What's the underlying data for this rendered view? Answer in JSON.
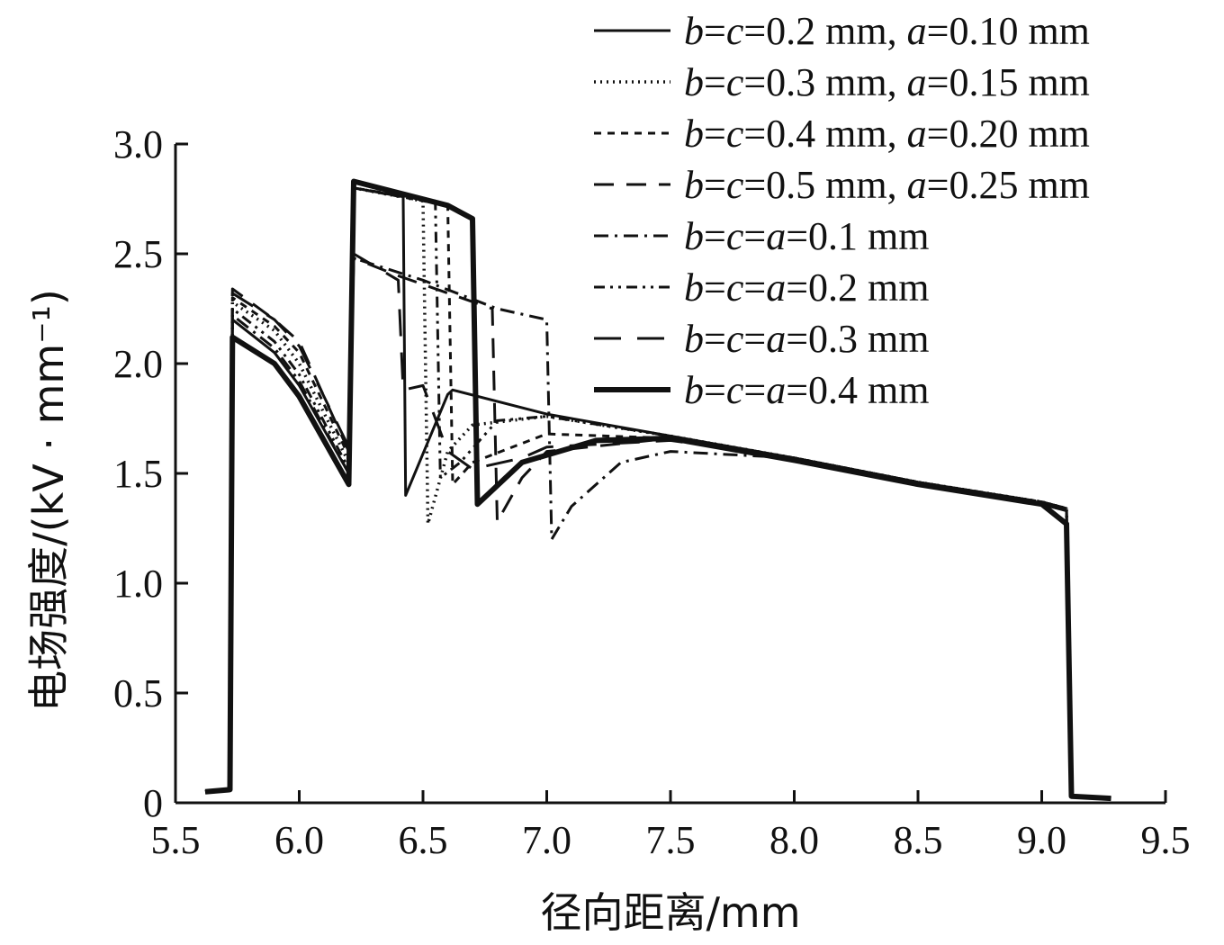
{
  "chart_data": {
    "type": "line",
    "title": "",
    "xlabel": "径向距离/mm",
    "ylabel": "电场强度/(kV · mm⁻¹)",
    "xlim": [
      5.5,
      9.5
    ],
    "ylim": [
      0,
      3.0
    ],
    "x_ticks": [
      5.5,
      6.0,
      6.5,
      7.0,
      7.5,
      8.0,
      8.5,
      9.0,
      9.5
    ],
    "x_tick_labels": [
      "5.5",
      "6.0",
      "6.5",
      "7.0",
      "7.5",
      "8.0",
      "8.5",
      "9.0",
      "9.5"
    ],
    "y_ticks": [
      0,
      0.5,
      1.0,
      1.5,
      2.0,
      2.5,
      3.0
    ],
    "y_tick_labels": [
      "0",
      "0.5",
      "1.0",
      "1.5",
      "2.0",
      "2.5",
      "3.0"
    ],
    "grid": false,
    "legend_position": "top-right",
    "series": [
      {
        "name": "b=c=0.2 mm, a=0.10 mm",
        "style": "solid",
        "color": "#111111",
        "points": [
          [
            5.62,
            0.05
          ],
          [
            5.72,
            0.06
          ],
          [
            5.73,
            2.2
          ],
          [
            5.9,
            2.05
          ],
          [
            6.0,
            1.9
          ],
          [
            6.2,
            1.5
          ],
          [
            6.22,
            2.8
          ],
          [
            6.42,
            2.76
          ],
          [
            6.43,
            1.4
          ],
          [
            6.6,
            1.86
          ],
          [
            6.62,
            1.88
          ],
          [
            7.0,
            1.77
          ],
          [
            7.5,
            1.67
          ],
          [
            8.0,
            1.57
          ],
          [
            8.5,
            1.46
          ],
          [
            9.0,
            1.36
          ],
          [
            9.1,
            1.33
          ],
          [
            9.12,
            0.03
          ],
          [
            9.28,
            0.02
          ]
        ]
      },
      {
        "name": "b=c=0.3 mm, a=0.15 mm",
        "style": "dotted",
        "color": "#111111",
        "points": [
          [
            5.62,
            0.05
          ],
          [
            5.72,
            0.06
          ],
          [
            5.73,
            2.28
          ],
          [
            5.9,
            2.15
          ],
          [
            6.0,
            2.0
          ],
          [
            6.2,
            1.55
          ],
          [
            6.22,
            2.8
          ],
          [
            6.5,
            2.74
          ],
          [
            6.52,
            1.27
          ],
          [
            6.6,
            1.6
          ],
          [
            6.7,
            1.72
          ],
          [
            7.0,
            1.76
          ],
          [
            7.5,
            1.67
          ],
          [
            8.0,
            1.57
          ],
          [
            8.5,
            1.46
          ],
          [
            9.0,
            1.37
          ],
          [
            9.1,
            1.34
          ],
          [
            9.12,
            0.03
          ],
          [
            9.28,
            0.02
          ]
        ]
      },
      {
        "name": "b=c=0.4 mm, a=0.20 mm",
        "style": "short-dash",
        "color": "#111111",
        "points": [
          [
            5.62,
            0.05
          ],
          [
            5.72,
            0.06
          ],
          [
            5.73,
            2.3
          ],
          [
            5.9,
            2.17
          ],
          [
            6.0,
            2.05
          ],
          [
            6.2,
            1.58
          ],
          [
            6.22,
            2.8
          ],
          [
            6.6,
            2.72
          ],
          [
            6.62,
            1.45
          ],
          [
            6.7,
            1.55
          ],
          [
            7.0,
            1.68
          ],
          [
            7.5,
            1.66
          ],
          [
            8.0,
            1.57
          ],
          [
            8.5,
            1.46
          ],
          [
            9.0,
            1.37
          ],
          [
            9.1,
            1.34
          ],
          [
            9.12,
            0.03
          ],
          [
            9.28,
            0.02
          ]
        ]
      },
      {
        "name": "b=c=0.5 mm, a=0.25 mm",
        "style": "long-dash",
        "color": "#111111",
        "points": [
          [
            5.62,
            0.05
          ],
          [
            5.72,
            0.06
          ],
          [
            5.73,
            2.34
          ],
          [
            5.9,
            2.2
          ],
          [
            6.0,
            2.1
          ],
          [
            6.2,
            1.6
          ],
          [
            6.22,
            2.48
          ],
          [
            6.4,
            2.4
          ],
          [
            6.78,
            2.25
          ],
          [
            6.8,
            1.28
          ],
          [
            6.9,
            1.48
          ],
          [
            7.0,
            1.6
          ],
          [
            7.5,
            1.66
          ],
          [
            8.0,
            1.57
          ],
          [
            8.5,
            1.46
          ],
          [
            9.0,
            1.37
          ],
          [
            9.1,
            1.34
          ],
          [
            9.12,
            0.03
          ],
          [
            9.28,
            0.02
          ]
        ]
      },
      {
        "name": "b=c=a=0.1 mm",
        "style": "dash-dot",
        "color": "#111111",
        "points": [
          [
            5.62,
            0.05
          ],
          [
            5.72,
            0.06
          ],
          [
            5.73,
            2.22
          ],
          [
            5.9,
            2.07
          ],
          [
            6.0,
            1.92
          ],
          [
            6.2,
            1.5
          ],
          [
            6.22,
            2.48
          ],
          [
            6.5,
            2.38
          ],
          [
            6.8,
            2.25
          ],
          [
            7.0,
            2.2
          ],
          [
            7.02,
            1.2
          ],
          [
            7.1,
            1.35
          ],
          [
            7.3,
            1.55
          ],
          [
            7.5,
            1.6
          ],
          [
            8.0,
            1.57
          ],
          [
            8.5,
            1.46
          ],
          [
            9.0,
            1.36
          ],
          [
            9.1,
            1.33
          ],
          [
            9.12,
            0.03
          ],
          [
            9.28,
            0.02
          ]
        ]
      },
      {
        "name": "b=c=a=0.2 mm",
        "style": "dash-dot-dot",
        "color": "#111111",
        "points": [
          [
            5.62,
            0.05
          ],
          [
            5.72,
            0.06
          ],
          [
            5.73,
            2.25
          ],
          [
            5.9,
            2.1
          ],
          [
            6.0,
            1.95
          ],
          [
            6.2,
            1.52
          ],
          [
            6.22,
            2.8
          ],
          [
            6.55,
            2.74
          ],
          [
            6.57,
            1.48
          ],
          [
            6.65,
            1.55
          ],
          [
            6.8,
            1.74
          ],
          [
            7.0,
            1.76
          ],
          [
            7.5,
            1.67
          ],
          [
            8.0,
            1.57
          ],
          [
            8.5,
            1.46
          ],
          [
            9.0,
            1.37
          ],
          [
            9.1,
            1.34
          ],
          [
            9.12,
            0.03
          ],
          [
            9.28,
            0.02
          ]
        ]
      },
      {
        "name": "b=c=a=0.3 mm",
        "style": "long-dash-wide",
        "color": "#111111",
        "points": [
          [
            5.62,
            0.05
          ],
          [
            5.72,
            0.06
          ],
          [
            5.73,
            2.32
          ],
          [
            5.9,
            2.2
          ],
          [
            6.0,
            2.08
          ],
          [
            6.2,
            1.62
          ],
          [
            6.22,
            2.5
          ],
          [
            6.4,
            2.38
          ],
          [
            6.42,
            1.88
          ],
          [
            6.5,
            1.9
          ],
          [
            6.6,
            1.6
          ],
          [
            6.7,
            1.52
          ],
          [
            6.9,
            1.57
          ],
          [
            7.0,
            1.62
          ],
          [
            7.5,
            1.65
          ],
          [
            8.0,
            1.57
          ],
          [
            8.5,
            1.46
          ],
          [
            9.0,
            1.37
          ],
          [
            9.1,
            1.34
          ],
          [
            9.12,
            0.03
          ],
          [
            9.28,
            0.02
          ]
        ]
      },
      {
        "name": "b=c=a=0.4 mm",
        "style": "thick",
        "color": "#111111",
        "points": [
          [
            5.62,
            0.05
          ],
          [
            5.72,
            0.06
          ],
          [
            5.73,
            2.12
          ],
          [
            5.9,
            2.0
          ],
          [
            6.0,
            1.85
          ],
          [
            6.2,
            1.45
          ],
          [
            6.22,
            2.83
          ],
          [
            6.6,
            2.72
          ],
          [
            6.7,
            2.66
          ],
          [
            6.72,
            1.36
          ],
          [
            6.9,
            1.55
          ],
          [
            7.2,
            1.65
          ],
          [
            7.5,
            1.66
          ],
          [
            8.0,
            1.56
          ],
          [
            8.5,
            1.45
          ],
          [
            9.0,
            1.36
          ],
          [
            9.1,
            1.27
          ],
          [
            9.12,
            0.03
          ],
          [
            9.28,
            0.02
          ]
        ]
      }
    ]
  }
}
